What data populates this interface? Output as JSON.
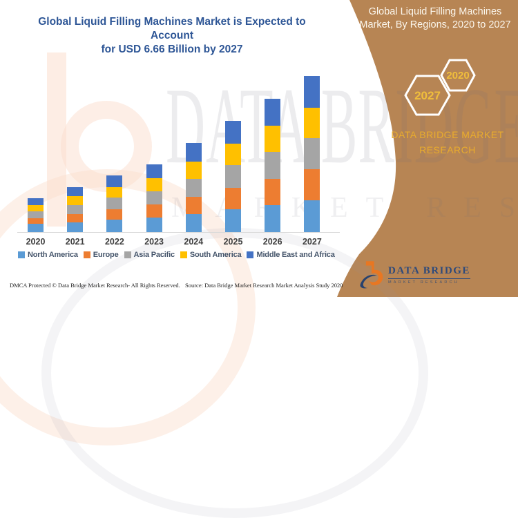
{
  "title": {
    "line1": "Global Liquid Filling Machines Market is Expected to Account",
    "line2": "for USD 6.66 Billion by 2027",
    "color": "#2E5696"
  },
  "side_panel": {
    "background_color": "#B78554",
    "heading_line1": "Global Liquid Filling Machines",
    "heading_line2": "Market, By Regions, 2020 to 2027",
    "heading_color": "#FBF6EC",
    "hex_back_year": "2027",
    "hex_front_year": "2020",
    "hex_outline_color": "#FFFFFF",
    "brand_line1": "DATA BRIDGE MARKET",
    "brand_line2": "RESEARCH",
    "accent_gold": "#E9AC2D"
  },
  "watermark": {
    "line1": "DATA BRIDGE",
    "line2": "MARKET RESEARCH"
  },
  "chart_data": {
    "type": "bar",
    "subtype": "stacked",
    "unit": "USD Billion",
    "categories": [
      "2020",
      "2021",
      "2022",
      "2023",
      "2024",
      "2025",
      "2026",
      "2027"
    ],
    "series": [
      {
        "name": "North America",
        "color": "#5B9BD5",
        "values": [
          0.34,
          0.42,
          0.52,
          0.62,
          0.78,
          0.97,
          1.16,
          1.35
        ]
      },
      {
        "name": "Europe",
        "color": "#ED7D31",
        "values": [
          0.26,
          0.36,
          0.46,
          0.55,
          0.73,
          0.93,
          1.12,
          1.32
        ]
      },
      {
        "name": "Asia Pacific",
        "color": "#A5A5A5",
        "values": [
          0.27,
          0.38,
          0.48,
          0.58,
          0.75,
          0.95,
          1.14,
          1.33
        ]
      },
      {
        "name": "South America",
        "color": "#FFC000",
        "values": [
          0.27,
          0.36,
          0.46,
          0.56,
          0.74,
          0.94,
          1.13,
          1.32
        ]
      },
      {
        "name": "Middle East and Africa",
        "color": "#4472C4",
        "values": [
          0.3,
          0.4,
          0.5,
          0.58,
          0.8,
          0.96,
          1.14,
          1.34
        ]
      }
    ],
    "totals": [
      1.44,
      1.92,
      2.42,
      2.89,
      3.8,
      4.75,
      5.69,
      6.66
    ],
    "ylim": [
      0,
      7
    ],
    "grid": false,
    "legend_position": "bottom",
    "xlabel": "",
    "ylabel": ""
  },
  "footer": {
    "dmca": "DMCA Protected © Data Bridge Market Research- All Rights Reserved.",
    "source": "Source: Data Bridge Market Research Market Analysis Study 2020"
  },
  "logo": {
    "name": "DATA BRIDGE",
    "subtitle": "MARKET RESEARCH"
  }
}
